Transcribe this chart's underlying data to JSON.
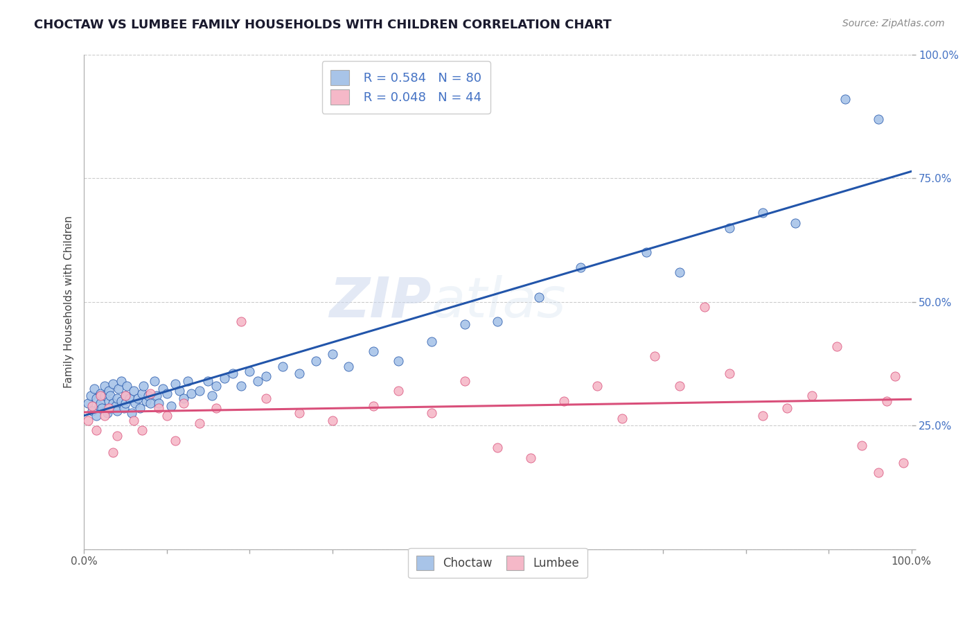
{
  "title": "CHOCTAW VS LUMBEE FAMILY HOUSEHOLDS WITH CHILDREN CORRELATION CHART",
  "source": "Source: ZipAtlas.com",
  "ylabel": "Family Households with Children",
  "choctaw_R": 0.584,
  "choctaw_N": 80,
  "lumbee_R": 0.048,
  "lumbee_N": 44,
  "choctaw_color": "#a8c4e8",
  "lumbee_color": "#f5b8c8",
  "choctaw_line_color": "#2255aa",
  "lumbee_line_color": "#d94f7a",
  "background_color": "#ffffff",
  "grid_color": "#cccccc",
  "watermark_zip": "ZIP",
  "watermark_atlas": "atlas",
  "xlim": [
    0.0,
    1.0
  ],
  "ylim": [
    0.0,
    1.0
  ],
  "choctaw_x": [
    0.005,
    0.008,
    0.01,
    0.012,
    0.015,
    0.015,
    0.018,
    0.02,
    0.02,
    0.022,
    0.025,
    0.025,
    0.028,
    0.03,
    0.03,
    0.032,
    0.032,
    0.035,
    0.035,
    0.038,
    0.04,
    0.04,
    0.042,
    0.045,
    0.045,
    0.048,
    0.05,
    0.05,
    0.052,
    0.055,
    0.058,
    0.06,
    0.062,
    0.065,
    0.068,
    0.07,
    0.072,
    0.075,
    0.078,
    0.08,
    0.085,
    0.088,
    0.09,
    0.095,
    0.1,
    0.105,
    0.11,
    0.115,
    0.12,
    0.125,
    0.13,
    0.14,
    0.15,
    0.155,
    0.16,
    0.17,
    0.18,
    0.19,
    0.2,
    0.21,
    0.22,
    0.24,
    0.26,
    0.28,
    0.3,
    0.32,
    0.35,
    0.38,
    0.42,
    0.46,
    0.5,
    0.55,
    0.6,
    0.68,
    0.72,
    0.78,
    0.82,
    0.86,
    0.92,
    0.96
  ],
  "choctaw_y": [
    0.295,
    0.31,
    0.28,
    0.325,
    0.27,
    0.305,
    0.29,
    0.315,
    0.295,
    0.285,
    0.31,
    0.33,
    0.275,
    0.3,
    0.32,
    0.285,
    0.31,
    0.295,
    0.335,
    0.29,
    0.305,
    0.28,
    0.325,
    0.3,
    0.34,
    0.285,
    0.31,
    0.295,
    0.33,
    0.305,
    0.275,
    0.32,
    0.295,
    0.305,
    0.285,
    0.315,
    0.33,
    0.3,
    0.31,
    0.295,
    0.34,
    0.31,
    0.295,
    0.325,
    0.315,
    0.29,
    0.335,
    0.32,
    0.305,
    0.34,
    0.315,
    0.32,
    0.34,
    0.31,
    0.33,
    0.345,
    0.355,
    0.33,
    0.36,
    0.34,
    0.35,
    0.37,
    0.355,
    0.38,
    0.395,
    0.37,
    0.4,
    0.38,
    0.42,
    0.455,
    0.46,
    0.51,
    0.57,
    0.6,
    0.56,
    0.65,
    0.68,
    0.66,
    0.91,
    0.87
  ],
  "lumbee_x": [
    0.005,
    0.01,
    0.015,
    0.02,
    0.025,
    0.03,
    0.035,
    0.04,
    0.05,
    0.06,
    0.07,
    0.08,
    0.09,
    0.1,
    0.11,
    0.12,
    0.14,
    0.16,
    0.19,
    0.22,
    0.26,
    0.3,
    0.35,
    0.38,
    0.42,
    0.46,
    0.5,
    0.54,
    0.58,
    0.62,
    0.65,
    0.69,
    0.72,
    0.75,
    0.78,
    0.82,
    0.85,
    0.88,
    0.91,
    0.94,
    0.96,
    0.97,
    0.98,
    0.99
  ],
  "lumbee_y": [
    0.26,
    0.29,
    0.24,
    0.31,
    0.27,
    0.285,
    0.195,
    0.23,
    0.31,
    0.26,
    0.24,
    0.315,
    0.285,
    0.27,
    0.22,
    0.295,
    0.255,
    0.285,
    0.46,
    0.305,
    0.275,
    0.26,
    0.29,
    0.32,
    0.275,
    0.34,
    0.205,
    0.185,
    0.3,
    0.33,
    0.265,
    0.39,
    0.33,
    0.49,
    0.355,
    0.27,
    0.285,
    0.31,
    0.41,
    0.21,
    0.155,
    0.3,
    0.35,
    0.175
  ]
}
